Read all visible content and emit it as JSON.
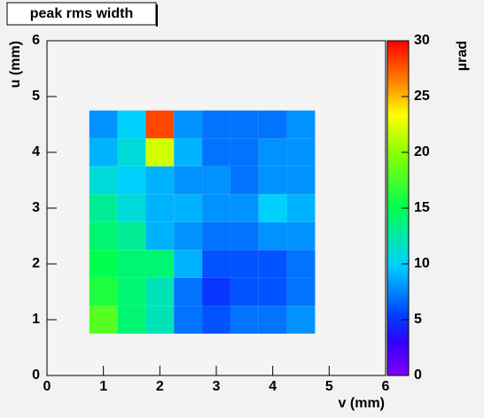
{
  "chart_data": {
    "type": "heatmap",
    "title": "peak rms width",
    "x_label": "v (mm)",
    "y_label": "u (mm)",
    "z_label": "µrad",
    "x_edges": [
      0.75,
      1.25,
      1.75,
      2.25,
      2.75,
      3.25,
      3.75,
      4.25,
      4.75
    ],
    "y_edges": [
      0.75,
      1.25,
      1.75,
      2.25,
      2.75,
      3.25,
      3.75,
      4.25,
      4.75
    ],
    "z": [
      [
        18,
        14,
        12,
        7,
        6,
        7,
        7,
        8
      ],
      [
        16,
        14,
        12,
        7,
        5,
        6,
        6,
        7
      ],
      [
        15,
        14,
        14,
        9,
        6,
        6,
        6,
        7
      ],
      [
        14,
        13,
        9,
        8,
        7,
        7,
        8,
        8
      ],
      [
        13,
        11,
        9,
        9,
        8,
        8,
        10,
        9
      ],
      [
        11,
        10,
        9,
        8,
        8,
        7,
        8,
        8
      ],
      [
        9,
        11,
        22,
        9,
        7,
        7,
        8,
        8
      ],
      [
        8,
        10,
        28,
        8,
        7,
        7,
        7,
        8
      ]
    ],
    "xlim": [
      0,
      6
    ],
    "ylim": [
      0,
      6
    ],
    "zlim": [
      0,
      30
    ],
    "xticks": [
      0,
      1,
      2,
      3,
      4,
      5,
      6
    ],
    "yticks": [
      0,
      1,
      2,
      3,
      4,
      5,
      6
    ],
    "zticks": [
      0,
      5,
      10,
      15,
      20,
      25,
      30
    ],
    "colormap": "rainbow"
  }
}
